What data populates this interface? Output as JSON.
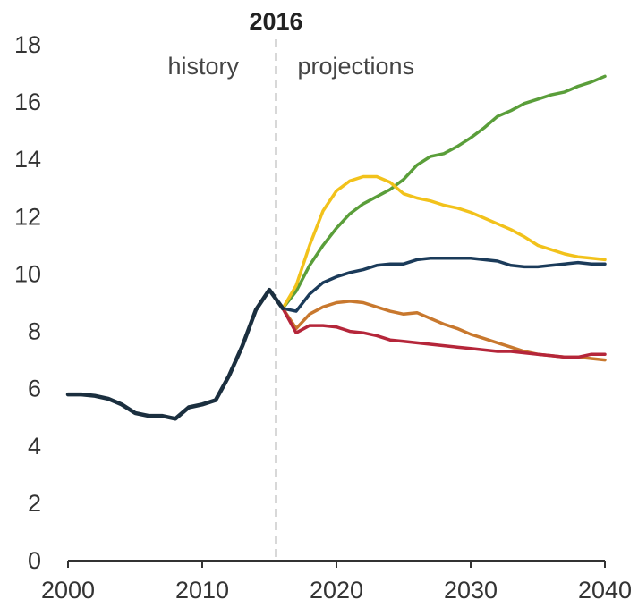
{
  "chart_data": {
    "type": "line",
    "title": "",
    "xlabel": "",
    "ylabel": "",
    "xlim": [
      2000,
      2040
    ],
    "ylim": [
      0,
      18
    ],
    "x_ticks": [
      2000,
      2010,
      2020,
      2030,
      2040
    ],
    "y_ticks": [
      0,
      2,
      4,
      6,
      8,
      10,
      12,
      14,
      16,
      18
    ],
    "grid": false,
    "legend": "none",
    "marker": {
      "x": 2015.5,
      "label": "2016"
    },
    "regions": {
      "left": "history",
      "right": "projections"
    },
    "history": {
      "color": "#1b2f3f",
      "x": [
        2000,
        2001,
        2002,
        2003,
        2004,
        2005,
        2006,
        2007,
        2008,
        2009,
        2010,
        2011,
        2012,
        2013,
        2014,
        2015,
        2016
      ],
      "y": [
        5.8,
        5.8,
        5.75,
        5.65,
        5.45,
        5.15,
        5.05,
        5.05,
        4.95,
        5.35,
        5.45,
        5.6,
        6.45,
        7.5,
        8.75,
        9.45,
        8.8
      ]
    },
    "series": [
      {
        "color": "#5a9e3a",
        "x": [
          2016,
          2017,
          2018,
          2019,
          2020,
          2021,
          2022,
          2023,
          2024,
          2025,
          2026,
          2027,
          2028,
          2029,
          2030,
          2031,
          2032,
          2033,
          2034,
          2035,
          2036,
          2037,
          2038,
          2039,
          2040
        ],
        "y": [
          8.8,
          9.4,
          10.3,
          11.0,
          11.6,
          12.1,
          12.45,
          12.7,
          12.95,
          13.3,
          13.8,
          14.1,
          14.2,
          14.45,
          14.75,
          15.1,
          15.5,
          15.7,
          15.95,
          16.1,
          16.25,
          16.35,
          16.55,
          16.7,
          16.9
        ]
      },
      {
        "color": "#f2c21b",
        "x": [
          2016,
          2017,
          2018,
          2019,
          2020,
          2021,
          2022,
          2023,
          2024,
          2025,
          2026,
          2027,
          2028,
          2029,
          2030,
          2031,
          2032,
          2033,
          2034,
          2035,
          2036,
          2037,
          2038,
          2039,
          2040
        ],
        "y": [
          8.8,
          9.6,
          11.0,
          12.2,
          12.9,
          13.25,
          13.4,
          13.4,
          13.2,
          12.8,
          12.65,
          12.55,
          12.4,
          12.3,
          12.15,
          11.95,
          11.75,
          11.55,
          11.3,
          11.0,
          10.85,
          10.7,
          10.6,
          10.55,
          10.5
        ]
      },
      {
        "color": "#1b3b5a",
        "x": [
          2016,
          2017,
          2018,
          2019,
          2020,
          2021,
          2022,
          2023,
          2024,
          2025,
          2026,
          2027,
          2028,
          2029,
          2030,
          2031,
          2032,
          2033,
          2034,
          2035,
          2036,
          2037,
          2038,
          2039,
          2040
        ],
        "y": [
          8.8,
          8.7,
          9.3,
          9.7,
          9.9,
          10.05,
          10.15,
          10.3,
          10.35,
          10.35,
          10.5,
          10.55,
          10.55,
          10.55,
          10.55,
          10.5,
          10.45,
          10.3,
          10.25,
          10.25,
          10.3,
          10.35,
          10.4,
          10.35,
          10.35
        ]
      },
      {
        "color": "#c8782e",
        "x": [
          2016,
          2017,
          2018,
          2019,
          2020,
          2021,
          2022,
          2023,
          2024,
          2025,
          2026,
          2027,
          2028,
          2029,
          2030,
          2031,
          2032,
          2033,
          2034,
          2035,
          2036,
          2037,
          2038,
          2039,
          2040
        ],
        "y": [
          8.8,
          8.1,
          8.6,
          8.85,
          9.0,
          9.05,
          9.0,
          8.85,
          8.7,
          8.6,
          8.65,
          8.45,
          8.25,
          8.1,
          7.9,
          7.75,
          7.6,
          7.45,
          7.3,
          7.2,
          7.15,
          7.1,
          7.1,
          7.05,
          7.0
        ]
      },
      {
        "color": "#b5263a",
        "x": [
          2016,
          2017,
          2018,
          2019,
          2020,
          2021,
          2022,
          2023,
          2024,
          2025,
          2026,
          2027,
          2028,
          2029,
          2030,
          2031,
          2032,
          2033,
          2034,
          2035,
          2036,
          2037,
          2038,
          2039,
          2040
        ],
        "y": [
          8.8,
          7.95,
          8.2,
          8.2,
          8.15,
          8.0,
          7.95,
          7.85,
          7.7,
          7.65,
          7.6,
          7.55,
          7.5,
          7.45,
          7.4,
          7.35,
          7.3,
          7.3,
          7.25,
          7.2,
          7.15,
          7.1,
          7.1,
          7.2,
          7.2
        ]
      }
    ]
  }
}
